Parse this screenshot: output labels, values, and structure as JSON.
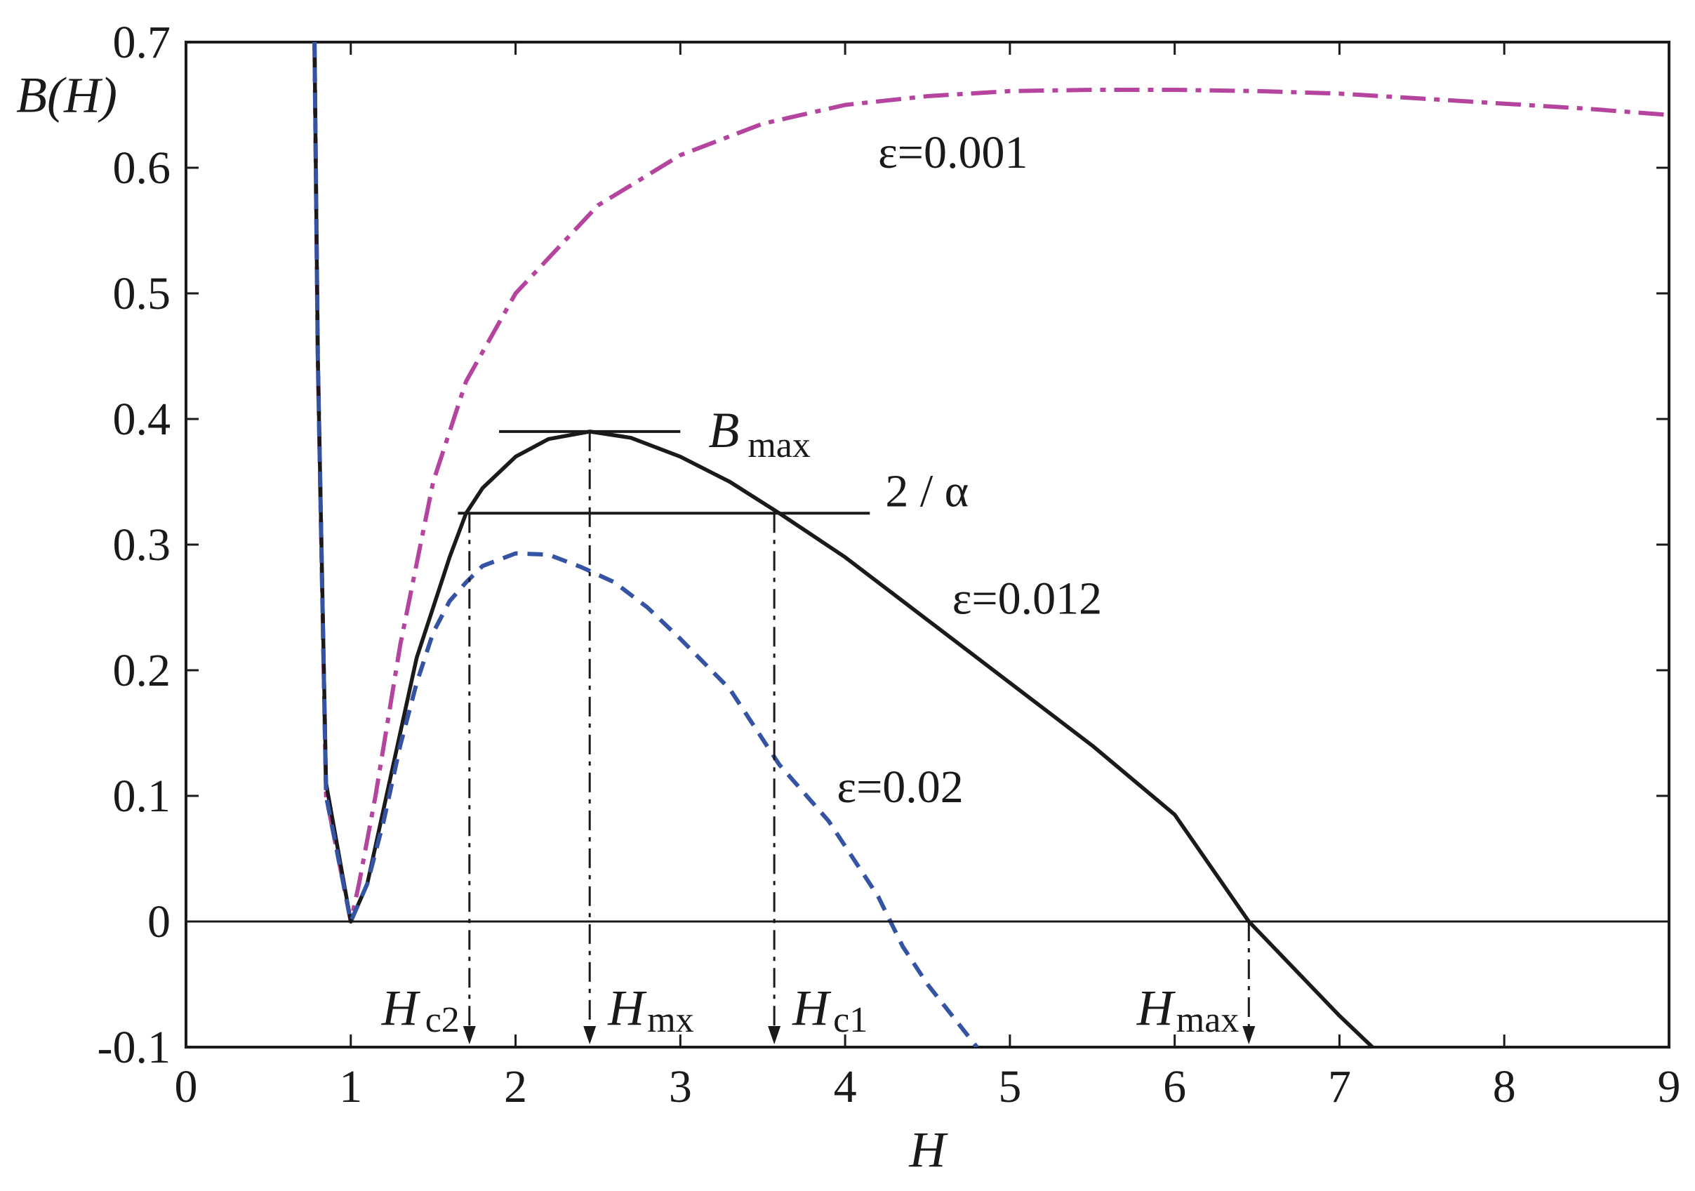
{
  "chart_data": {
    "type": "line",
    "xlabel": "H",
    "ylabel": "B(H)",
    "xlim": [
      0,
      9
    ],
    "ylim": [
      -0.1,
      0.7
    ],
    "x_ticks": [
      "0",
      "1",
      "2",
      "3",
      "4",
      "5",
      "6",
      "7",
      "8",
      "9"
    ],
    "y_ticks": [
      "-0.1",
      "0",
      "0.1",
      "0.2",
      "0.3",
      "0.4",
      "0.5",
      "0.6",
      "0.7"
    ],
    "grid": false,
    "series": [
      {
        "name": "ε=0.001",
        "color": "#b5449e",
        "dash": "dashdot",
        "points": [
          [
            0.78,
            0.7
          ],
          [
            0.8,
            0.45
          ],
          [
            0.85,
            0.1
          ],
          [
            1.0,
            0.0
          ],
          [
            1.05,
            0.03
          ],
          [
            1.15,
            0.1
          ],
          [
            1.3,
            0.22
          ],
          [
            1.5,
            0.35
          ],
          [
            1.7,
            0.43
          ],
          [
            2.0,
            0.5
          ],
          [
            2.5,
            0.57
          ],
          [
            3.0,
            0.61
          ],
          [
            3.5,
            0.635
          ],
          [
            4.0,
            0.65
          ],
          [
            4.5,
            0.657
          ],
          [
            5.0,
            0.661
          ],
          [
            5.5,
            0.662
          ],
          [
            6.0,
            0.662
          ],
          [
            6.5,
            0.661
          ],
          [
            7.0,
            0.659
          ],
          [
            7.5,
            0.655
          ],
          [
            8.0,
            0.651
          ],
          [
            8.5,
            0.647
          ],
          [
            9.0,
            0.642
          ]
        ]
      },
      {
        "name": "ε=0.012",
        "color": "#1a1a1a",
        "dash": "solid",
        "points": [
          [
            0.78,
            0.7
          ],
          [
            0.8,
            0.45
          ],
          [
            0.85,
            0.11
          ],
          [
            1.0,
            0.0
          ],
          [
            1.1,
            0.03
          ],
          [
            1.2,
            0.09
          ],
          [
            1.3,
            0.15
          ],
          [
            1.4,
            0.21
          ],
          [
            1.5,
            0.25
          ],
          [
            1.6,
            0.29
          ],
          [
            1.7,
            0.325
          ],
          [
            1.8,
            0.345
          ],
          [
            2.0,
            0.37
          ],
          [
            2.2,
            0.384
          ],
          [
            2.45,
            0.39
          ],
          [
            2.7,
            0.385
          ],
          [
            3.0,
            0.37
          ],
          [
            3.3,
            0.35
          ],
          [
            3.6,
            0.325
          ],
          [
            4.0,
            0.29
          ],
          [
            4.5,
            0.24
          ],
          [
            5.0,
            0.19
          ],
          [
            5.5,
            0.14
          ],
          [
            6.0,
            0.085
          ],
          [
            6.45,
            0.0
          ],
          [
            7.0,
            -0.075
          ],
          [
            7.2,
            -0.1
          ]
        ]
      },
      {
        "name": "ε=0.02",
        "color": "#3453a3",
        "dash": "dashed",
        "points": [
          [
            0.78,
            0.7
          ],
          [
            0.8,
            0.45
          ],
          [
            0.85,
            0.1
          ],
          [
            1.0,
            0.0
          ],
          [
            1.1,
            0.03
          ],
          [
            1.2,
            0.08
          ],
          [
            1.3,
            0.14
          ],
          [
            1.4,
            0.19
          ],
          [
            1.5,
            0.23
          ],
          [
            1.6,
            0.255
          ],
          [
            1.7,
            0.27
          ],
          [
            1.8,
            0.283
          ],
          [
            2.0,
            0.293
          ],
          [
            2.2,
            0.292
          ],
          [
            2.4,
            0.282
          ],
          [
            2.6,
            0.27
          ],
          [
            2.8,
            0.25
          ],
          [
            3.0,
            0.225
          ],
          [
            3.3,
            0.185
          ],
          [
            3.6,
            0.125
          ],
          [
            3.9,
            0.08
          ],
          [
            4.2,
            0.02
          ],
          [
            4.35,
            -0.02
          ],
          [
            4.5,
            -0.05
          ],
          [
            4.8,
            -0.1
          ]
        ]
      }
    ],
    "reference_lines": {
      "zero_line_y": 0,
      "bmax": {
        "y": 0.39,
        "x_from": 1.9,
        "x_to": 3.0,
        "label": "B",
        "label_sub": "max"
      },
      "two_over_alpha": {
        "y": 0.325,
        "x_from": 1.65,
        "x_to": 4.15,
        "label": "2 / α"
      }
    },
    "markers": [
      {
        "x": 1.72,
        "y_top": 0.325,
        "label": "H",
        "label_sub": "c2"
      },
      {
        "x": 2.45,
        "y_top": 0.39,
        "label": "H",
        "label_sub": "mx"
      },
      {
        "x": 3.57,
        "y_top": 0.325,
        "label": "H",
        "label_sub": "c1"
      },
      {
        "x": 6.45,
        "y_top": 0.0,
        "label": "H",
        "label_sub": "max"
      }
    ],
    "curve_labels": [
      {
        "text": "ε=0.001",
        "x": 4.2,
        "y": 0.6
      },
      {
        "text": "ε=0.012",
        "x": 4.65,
        "y": 0.245
      },
      {
        "text": "ε=0.02",
        "x": 3.95,
        "y": 0.095
      }
    ]
  }
}
